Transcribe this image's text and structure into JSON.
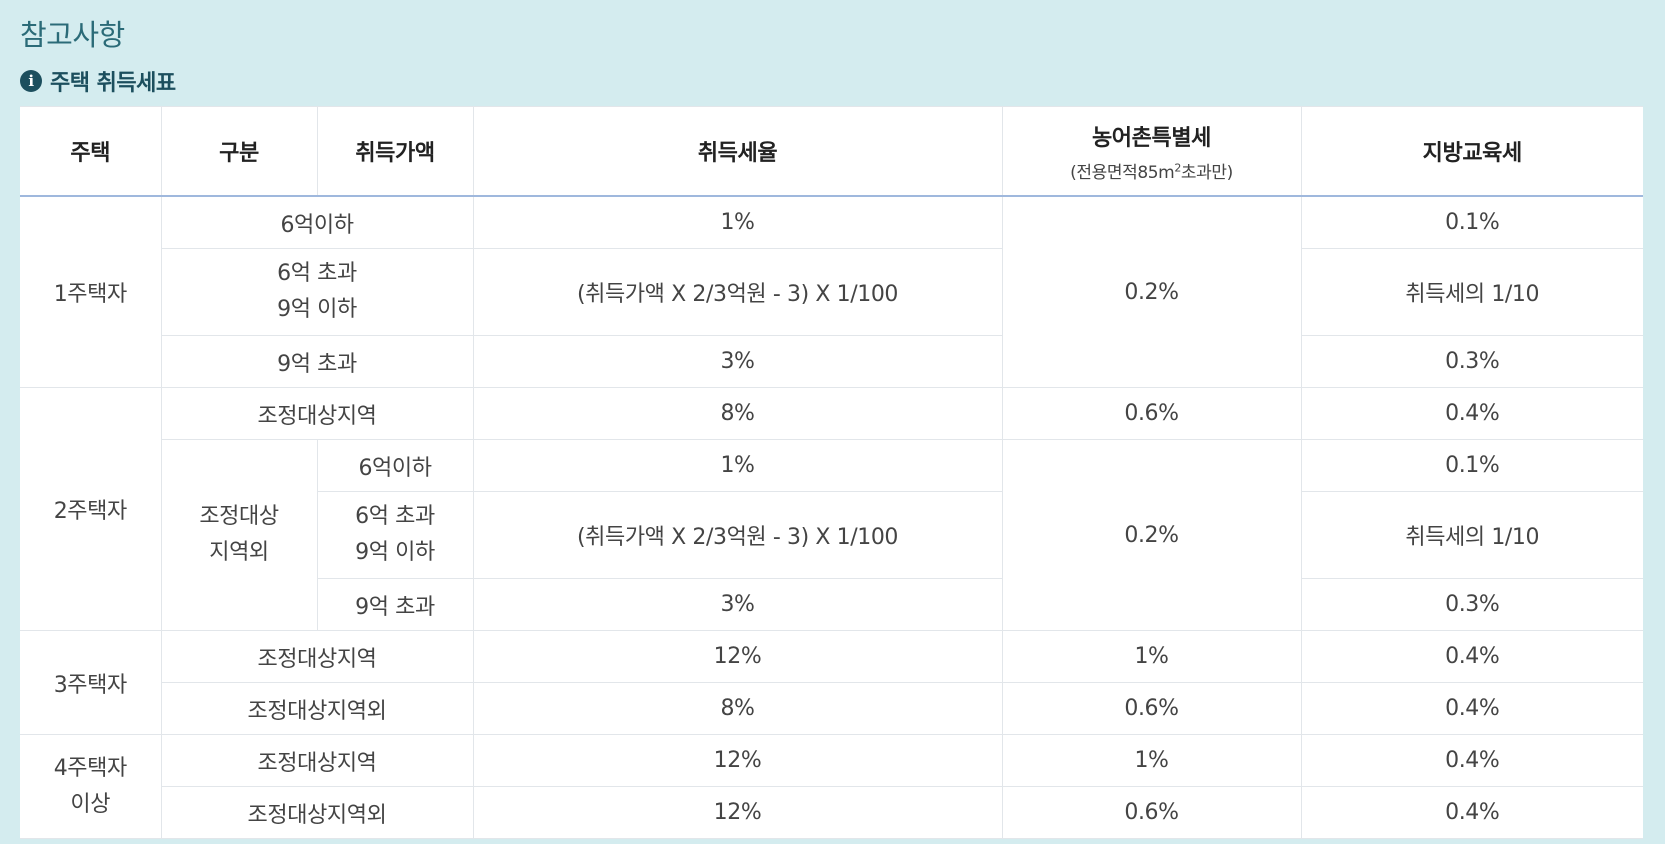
{
  "page": {
    "title": "참고사항"
  },
  "section": {
    "icon": "info-icon",
    "icon_glyph": "i",
    "title": "주택 취득세표"
  },
  "table": {
    "headers": {
      "house": "주택",
      "division": "구분",
      "price": "취득가액",
      "rate": "취득세율",
      "rural": "농어촌특별세",
      "rural_note_pre": "(전용면적85m",
      "rural_note_sup": "2",
      "rural_note_post": "초과만)",
      "edu": "지방교육세"
    },
    "rows": {
      "h1": {
        "label": "1주택자",
        "r1_div": "6억이하",
        "r2_div_l1": "6억 초과",
        "r2_div_l2": "9억 이하",
        "r3_div": "9억 초과",
        "r1_rate": "1%",
        "r2_rate": "(취득가액 X 2/3억원 - 3) X 1/100",
        "r3_rate": "3%",
        "rural": "0.2%",
        "r1_edu": "0.1%",
        "r2_edu": "취득세의 1/10",
        "r3_edu": "0.3%"
      },
      "h2": {
        "label": "2주택자",
        "adj_div": "조정대상지역",
        "adj_rate": "8%",
        "adj_rural": "0.6%",
        "adj_edu": "0.4%",
        "non_l1": "조정대상",
        "non_l2": "지역외",
        "r1_price": "6억이하",
        "r2_price_l1": "6억 초과",
        "r2_price_l2": "9억 이하",
        "r3_price": "9억 초과",
        "r1_rate": "1%",
        "r2_rate": "(취득가액 X 2/3억원 - 3) X 1/100",
        "r3_rate": "3%",
        "rural": "0.2%",
        "r1_edu": "0.1%",
        "r2_edu": "취득세의 1/10",
        "r3_edu": "0.3%"
      },
      "h3": {
        "label": "3주택자",
        "adj_div": "조정대상지역",
        "adj_rate": "12%",
        "adj_rural": "1%",
        "adj_edu": "0.4%",
        "non_div": "조정대상지역외",
        "non_rate": "8%",
        "non_rural": "0.6%",
        "non_edu": "0.4%"
      },
      "h4": {
        "label_l1": "4주택자",
        "label_l2": "이상",
        "adj_div": "조정대상지역",
        "adj_rate": "12%",
        "adj_rural": "1%",
        "adj_edu": "0.4%",
        "non_div": "조정대상지역외",
        "non_rate": "12%",
        "non_rural": "0.6%",
        "non_edu": "0.4%"
      }
    }
  }
}
